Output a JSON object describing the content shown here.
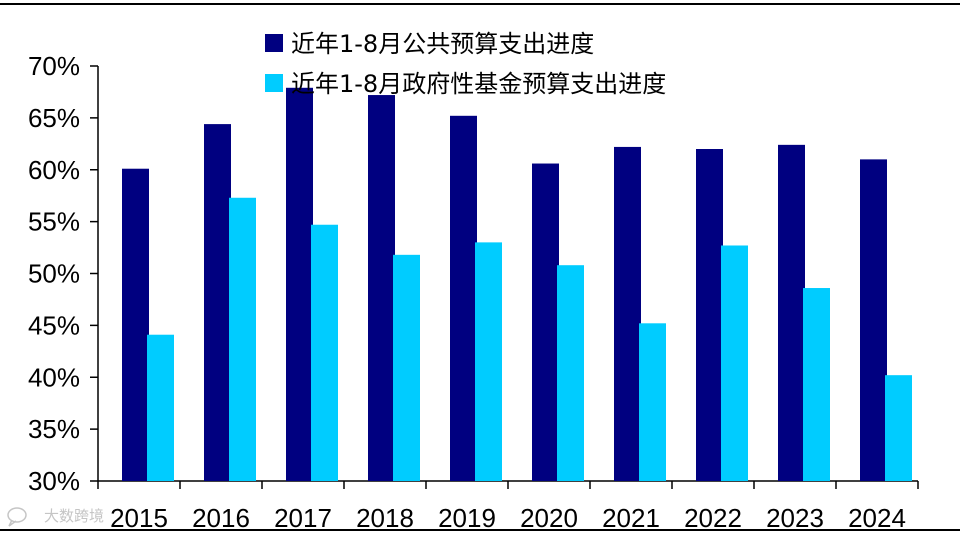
{
  "chart_data": {
    "type": "bar",
    "categories": [
      "2015",
      "2016",
      "2017",
      "2018",
      "2019",
      "2020",
      "2021",
      "2022",
      "2023",
      "2024"
    ],
    "series": [
      {
        "name": "近年1-8月公共预算支出进度",
        "color": "#000080",
        "values": [
          60.1,
          64.4,
          67.9,
          67.2,
          65.2,
          60.6,
          62.2,
          62.0,
          62.4,
          61.0
        ]
      },
      {
        "name": "近年1-8月政府性基金预算支出进度",
        "color": "#00CCFF",
        "values": [
          44.1,
          57.3,
          54.7,
          51.8,
          53.0,
          50.8,
          45.2,
          52.7,
          48.6,
          40.2
        ]
      }
    ],
    "ylim": [
      30,
      70
    ],
    "yticks": [
      "30%",
      "35%",
      "40%",
      "45%",
      "50%",
      "55%",
      "60%",
      "65%",
      "70%"
    ],
    "ytick_values": [
      30,
      35,
      40,
      45,
      50,
      55,
      60,
      65,
      70
    ],
    "title": "",
    "xlabel": "",
    "ylabel": "",
    "legend_position": "top",
    "grid": false
  },
  "watermark": {
    "text": "大数跨境",
    "icon": "chat-bubble-icon"
  }
}
